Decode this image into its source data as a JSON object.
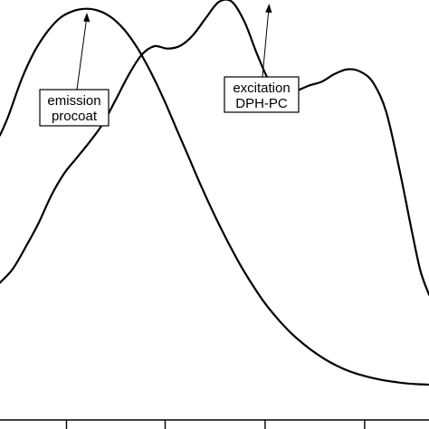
{
  "chart_data": {
    "type": "line",
    "xlabel": "",
    "ylabel": "",
    "xlim": [
      0,
      100
    ],
    "ylim": [
      0,
      100
    ],
    "grid": false,
    "x_ticks": [
      15.5,
      38.5,
      61.8,
      85
    ],
    "series": [
      {
        "name": "emission",
        "x": [
          0,
          2,
          5,
          8,
          11,
          14,
          17,
          20,
          23,
          26,
          29,
          32,
          35,
          38,
          41,
          44,
          47,
          50,
          53,
          56,
          59,
          62,
          65,
          68,
          71,
          74,
          77,
          80,
          83,
          86,
          89,
          92,
          95,
          98,
          100
        ],
        "values": [
          66,
          71,
          80,
          87,
          92,
          95.5,
          97.2,
          97.8,
          97.3,
          95.6,
          92.5,
          88,
          82.2,
          75.5,
          68,
          60.5,
          53,
          46,
          39.5,
          33.5,
          28.2,
          23.5,
          19.6,
          16.2,
          13.4,
          11,
          9,
          7.4,
          6.2,
          5.3,
          4.6,
          4.1,
          3.7,
          3.5,
          3.4
        ]
      },
      {
        "name": "excitation",
        "x": [
          0,
          3,
          6,
          9,
          12,
          15,
          18,
          21,
          24,
          27,
          30,
          33,
          36,
          39,
          42,
          45,
          48,
          51,
          54,
          57,
          60,
          63,
          66,
          69,
          72,
          75,
          78,
          81,
          84,
          87,
          90,
          93,
          96,
          98,
          100
        ],
        "values": [
          29,
          32.5,
          38,
          44,
          51,
          56.5,
          60.5,
          64.5,
          69,
          75,
          81.2,
          86.2,
          88.4,
          87.8,
          88.5,
          91.2,
          95.5,
          99.5,
          99.6,
          94.5,
          86.2,
          79.2,
          76.8,
          77.2,
          78.5,
          79.5,
          81.4,
          82.6,
          82,
          79.2,
          72,
          58,
          42,
          32,
          26
        ]
      }
    ],
    "annotations": [
      {
        "line1": "emission",
        "line2": "procoat",
        "target": "emission"
      },
      {
        "line1": "excitation",
        "line2": "DPH-PC",
        "target": "excitation"
      }
    ]
  }
}
